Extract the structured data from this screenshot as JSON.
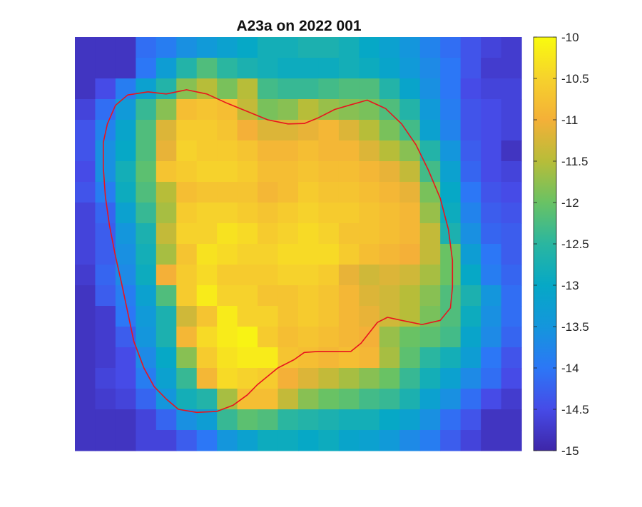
{
  "chart_data": {
    "type": "heatmap",
    "title": "A23a on 2022 001",
    "xlabel": "",
    "ylabel": "",
    "grid": false,
    "colormap": "parula",
    "colorbar": {
      "min": -15,
      "max": -10,
      "ticks": [
        -10,
        -10.5,
        -11,
        -11.5,
        -12,
        -12.5,
        -13,
        -13.5,
        -14,
        -14.5,
        -15
      ],
      "tick_labels": [
        "-10",
        "-10.5",
        "-11",
        "-11.5",
        "-12",
        "-12.5",
        "-13",
        "-13.5",
        "-14",
        "-14.5",
        "-15"
      ]
    },
    "contour_color": "#e8141e",
    "rows": 20,
    "cols": 22,
    "values": [
      [
        -14.8,
        -14.8,
        -14.8,
        -14.1,
        -13.9,
        -13.6,
        -13.4,
        -13.2,
        -13.0,
        -12.8,
        -12.8,
        -12.7,
        -12.7,
        -12.8,
        -13.0,
        -13.2,
        -13.5,
        -13.8,
        -14.1,
        -14.4,
        -14.6,
        -14.7
      ],
      [
        -14.8,
        -14.8,
        -14.8,
        -14.0,
        -13.3,
        -12.6,
        -12.2,
        -12.5,
        -12.7,
        -12.8,
        -12.9,
        -12.9,
        -12.9,
        -12.8,
        -12.9,
        -13.1,
        -13.4,
        -13.7,
        -14.0,
        -14.4,
        -14.7,
        -14.7
      ],
      [
        -14.8,
        -14.5,
        -13.9,
        -13.2,
        -12.6,
        -11.8,
        -11.5,
        -11.9,
        -11.5,
        -12.3,
        -12.4,
        -12.4,
        -12.3,
        -12.2,
        -12.2,
        -12.6,
        -13.1,
        -13.6,
        -14.0,
        -14.5,
        -14.6,
        -14.6
      ],
      [
        -14.6,
        -14.1,
        -13.4,
        -12.4,
        -11.8,
        -10.8,
        -10.7,
        -10.8,
        -11.4,
        -11.9,
        -11.8,
        -11.5,
        -11.7,
        -11.8,
        -11.9,
        -12.2,
        -12.6,
        -13.4,
        -13.9,
        -14.4,
        -14.5,
        -14.6
      ],
      [
        -14.4,
        -13.8,
        -13.1,
        -12.2,
        -11.2,
        -10.6,
        -10.6,
        -10.7,
        -11.0,
        -11.2,
        -11.2,
        -11.1,
        -10.9,
        -11.2,
        -11.5,
        -11.9,
        -12.3,
        -13.2,
        -13.8,
        -14.4,
        -14.5,
        -14.6
      ],
      [
        -14.4,
        -13.6,
        -13.0,
        -12.2,
        -11.1,
        -10.5,
        -10.6,
        -10.6,
        -10.7,
        -10.9,
        -10.9,
        -10.8,
        -10.9,
        -10.9,
        -11.2,
        -11.5,
        -11.8,
        -12.6,
        -13.5,
        -14.3,
        -14.5,
        -14.8
      ],
      [
        -14.5,
        -13.6,
        -12.8,
        -12.1,
        -10.7,
        -10.6,
        -10.5,
        -10.5,
        -10.6,
        -10.8,
        -10.8,
        -10.7,
        -10.8,
        -10.8,
        -10.9,
        -11.1,
        -11.4,
        -12.3,
        -13.2,
        -14.2,
        -14.5,
        -14.6
      ],
      [
        -14.4,
        -13.9,
        -12.9,
        -12.2,
        -11.5,
        -10.8,
        -10.7,
        -10.7,
        -10.7,
        -10.9,
        -10.8,
        -10.6,
        -10.7,
        -10.7,
        -10.8,
        -10.9,
        -11.1,
        -11.9,
        -13.0,
        -14.0,
        -14.4,
        -14.5
      ],
      [
        -14.6,
        -14.2,
        -13.2,
        -12.4,
        -11.6,
        -10.6,
        -10.5,
        -10.5,
        -10.6,
        -10.7,
        -10.6,
        -10.5,
        -10.6,
        -10.6,
        -10.7,
        -10.8,
        -10.9,
        -11.7,
        -12.9,
        -13.8,
        -14.3,
        -14.4
      ],
      [
        -14.6,
        -14.3,
        -13.5,
        -12.7,
        -11.4,
        -10.5,
        -10.5,
        -10.3,
        -10.4,
        -10.6,
        -10.5,
        -10.4,
        -10.5,
        -10.7,
        -10.7,
        -10.8,
        -10.9,
        -11.4,
        -12.7,
        -13.6,
        -14.2,
        -14.3
      ],
      [
        -14.6,
        -14.3,
        -13.6,
        -12.8,
        -11.6,
        -10.7,
        -10.3,
        -10.4,
        -10.5,
        -10.5,
        -10.4,
        -10.4,
        -10.4,
        -10.6,
        -10.8,
        -10.9,
        -11.0,
        -11.4,
        -12.0,
        -13.3,
        -14.0,
        -14.3
      ],
      [
        -14.7,
        -14.2,
        -13.7,
        -12.9,
        -11.0,
        -10.6,
        -10.4,
        -10.6,
        -10.6,
        -10.6,
        -10.5,
        -10.5,
        -10.6,
        -11.1,
        -11.3,
        -11.2,
        -11.3,
        -11.6,
        -12.0,
        -13.0,
        -13.9,
        -14.2
      ],
      [
        -14.8,
        -14.3,
        -13.9,
        -13.2,
        -12.2,
        -10.6,
        -10.2,
        -10.5,
        -10.5,
        -10.7,
        -10.7,
        -10.6,
        -10.7,
        -10.9,
        -11.2,
        -11.3,
        -11.5,
        -11.8,
        -12.2,
        -12.7,
        -13.5,
        -14.1
      ],
      [
        -14.8,
        -14.7,
        -14.0,
        -13.4,
        -12.7,
        -11.3,
        -10.7,
        -10.2,
        -10.5,
        -10.5,
        -10.7,
        -10.6,
        -10.7,
        -10.9,
        -11.1,
        -11.3,
        -11.5,
        -11.9,
        -12.2,
        -12.9,
        -13.6,
        -14.1
      ],
      [
        -14.8,
        -14.7,
        -14.3,
        -13.5,
        -12.7,
        -10.9,
        -10.4,
        -10.2,
        -10.1,
        -10.6,
        -10.8,
        -10.7,
        -10.8,
        -10.9,
        -11.0,
        -11.7,
        -12.0,
        -12.1,
        -12.3,
        -13.1,
        -13.7,
        -14.2
      ],
      [
        -14.8,
        -14.7,
        -14.5,
        -13.7,
        -13.0,
        -11.8,
        -10.6,
        -10.3,
        -10.2,
        -10.2,
        -10.7,
        -10.8,
        -10.9,
        -10.8,
        -10.9,
        -11.6,
        -12.1,
        -12.5,
        -12.8,
        -13.3,
        -14.0,
        -14.4
      ],
      [
        -14.8,
        -14.6,
        -14.5,
        -13.9,
        -13.2,
        -12.4,
        -10.9,
        -10.4,
        -10.5,
        -10.6,
        -11.0,
        -11.2,
        -11.4,
        -11.6,
        -11.8,
        -12.0,
        -12.4,
        -12.8,
        -13.2,
        -13.7,
        -14.1,
        -14.5
      ],
      [
        -14.8,
        -14.7,
        -14.6,
        -14.2,
        -13.5,
        -12.8,
        -12.6,
        -11.6,
        -10.8,
        -10.8,
        -11.4,
        -11.8,
        -12.0,
        -12.1,
        -12.3,
        -12.4,
        -12.7,
        -13.2,
        -13.6,
        -14.1,
        -14.5,
        -14.7
      ],
      [
        -14.8,
        -14.8,
        -14.8,
        -14.6,
        -14.2,
        -13.6,
        -13.3,
        -12.4,
        -12.1,
        -12.2,
        -12.5,
        -12.6,
        -12.7,
        -12.8,
        -12.8,
        -13.0,
        -13.2,
        -13.6,
        -14.1,
        -14.4,
        -14.8,
        -14.8
      ],
      [
        -14.8,
        -14.8,
        -14.8,
        -14.6,
        -14.6,
        -14.3,
        -14.0,
        -13.5,
        -13.2,
        -12.9,
        -12.9,
        -13.0,
        -12.9,
        -13.1,
        -13.2,
        -13.4,
        -13.7,
        -13.9,
        -14.3,
        -14.6,
        -14.8,
        -14.8
      ]
    ],
    "contour_points": [
      [
        4.5,
        2.75
      ],
      [
        5.5,
        2.55
      ],
      [
        6.5,
        2.75
      ],
      [
        7.5,
        3.2
      ],
      [
        8.5,
        3.6
      ],
      [
        9.5,
        4.0
      ],
      [
        10.5,
        4.2
      ],
      [
        11.3,
        4.18
      ],
      [
        12.0,
        3.9
      ],
      [
        12.8,
        3.5
      ],
      [
        13.5,
        3.3
      ],
      [
        14.4,
        3.05
      ],
      [
        15.3,
        3.45
      ],
      [
        16.1,
        4.2
      ],
      [
        16.8,
        5.2
      ],
      [
        17.4,
        6.4
      ],
      [
        18.0,
        7.8
      ],
      [
        18.4,
        9.3
      ],
      [
        18.6,
        10.8
      ],
      [
        18.6,
        12.1
      ],
      [
        18.5,
        13.1
      ],
      [
        18.0,
        13.7
      ],
      [
        17.1,
        13.9
      ],
      [
        16.1,
        13.7
      ],
      [
        15.4,
        13.55
      ],
      [
        14.9,
        13.8
      ],
      [
        14.5,
        14.3
      ],
      [
        14.1,
        14.8
      ],
      [
        13.6,
        15.2
      ],
      [
        12.9,
        15.2
      ],
      [
        12.0,
        15.2
      ],
      [
        11.3,
        15.25
      ],
      [
        10.8,
        15.6
      ],
      [
        10.0,
        16.0
      ],
      [
        9.5,
        16.4
      ],
      [
        9.0,
        16.8
      ],
      [
        8.5,
        17.3
      ],
      [
        7.8,
        17.8
      ],
      [
        7.0,
        18.1
      ],
      [
        6.0,
        18.15
      ],
      [
        5.1,
        18.0
      ],
      [
        4.5,
        17.5
      ],
      [
        3.9,
        16.9
      ],
      [
        3.4,
        16.0
      ],
      [
        2.9,
        14.7
      ],
      [
        2.6,
        13.3
      ],
      [
        2.3,
        11.9
      ],
      [
        2.0,
        10.6
      ],
      [
        1.7,
        9.1
      ],
      [
        1.5,
        7.7
      ],
      [
        1.4,
        6.3
      ],
      [
        1.4,
        5.1
      ],
      [
        1.6,
        4.2
      ],
      [
        2.0,
        3.3
      ],
      [
        2.6,
        2.8
      ],
      [
        3.6,
        2.65
      ],
      [
        4.5,
        2.75
      ]
    ]
  }
}
